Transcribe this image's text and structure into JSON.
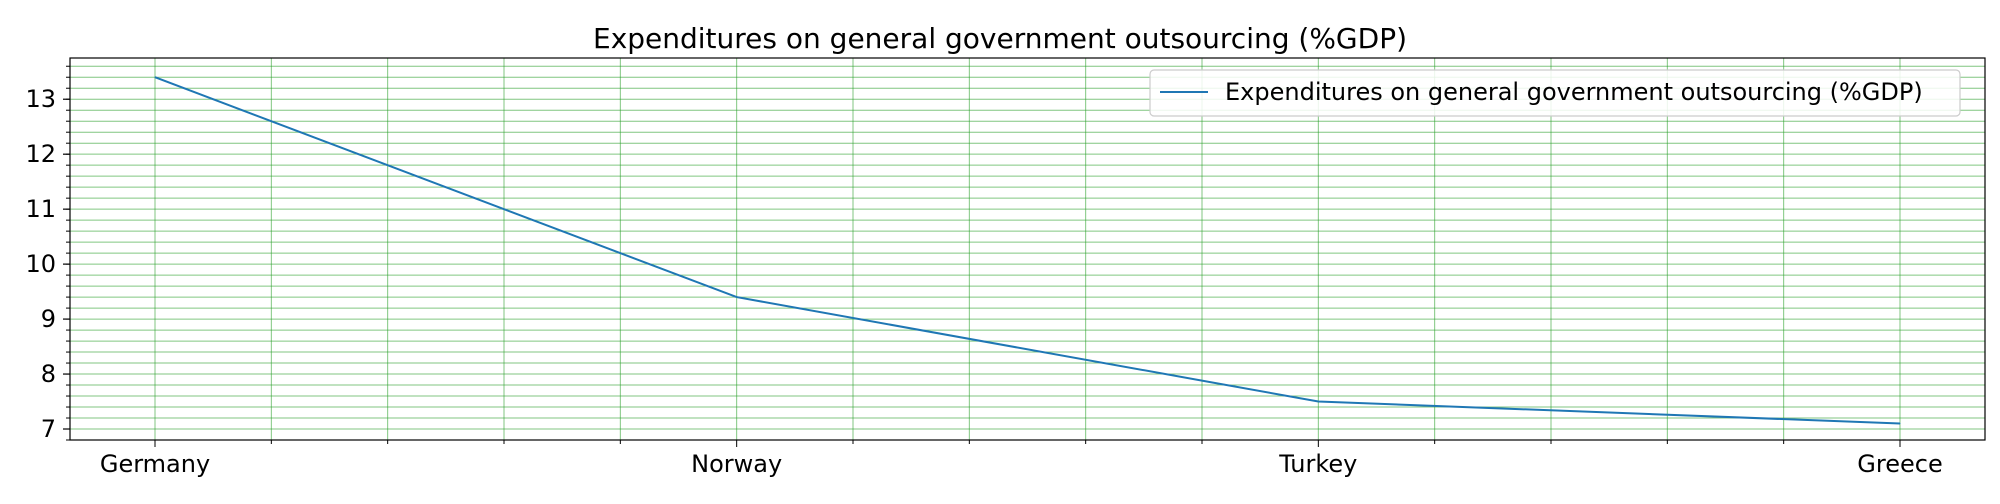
{
  "chart_data": {
    "type": "line",
    "title": "Expenditures on general government outsourcing (%GDP)",
    "xlabel": "",
    "ylabel": "",
    "categories": [
      "Germany",
      "Norway",
      "Turkey",
      "Greece"
    ],
    "series": [
      {
        "name": "Expenditures on general government outsourcing (%GDP)",
        "values": [
          13.4,
          9.4,
          7.5,
          7.1
        ],
        "color": "#1f77b4"
      }
    ],
    "ylim": [
      6.8,
      13.75
    ],
    "yticks": [
      7,
      8,
      9,
      10,
      11,
      12,
      13
    ],
    "y_minor_step": 0.2,
    "x_minor_per_interval": 5,
    "grid": true,
    "grid_color": "#2ca02c",
    "legend": "top-right"
  }
}
